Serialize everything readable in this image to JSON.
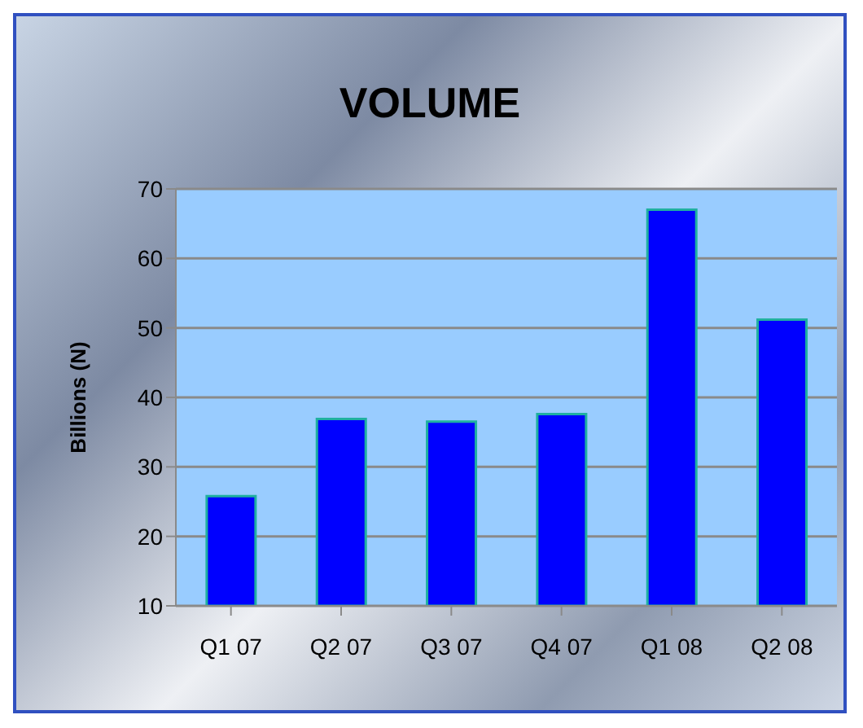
{
  "chart_data": {
    "type": "bar",
    "title": "VOLUME",
    "ylabel": "Billions (N)",
    "categories": [
      "Q1 07",
      "Q2 07",
      "Q3 07",
      "Q4 07",
      "Q1 08",
      "Q2 08"
    ],
    "values": [
      25.8,
      36.9,
      36.5,
      37.6,
      67.0,
      51.2
    ],
    "color": "#0000ff",
    "ylim": [
      10,
      70
    ],
    "yticks": [
      10,
      20,
      30,
      40,
      50,
      60,
      70
    ],
    "grid": "y",
    "legend": false
  }
}
